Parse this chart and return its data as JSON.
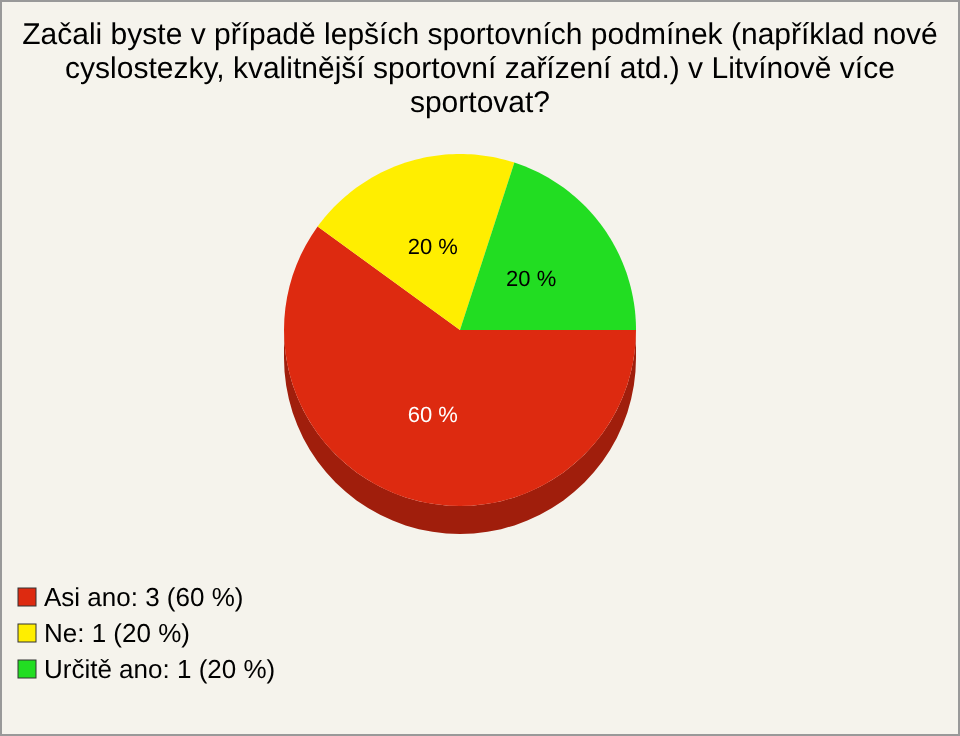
{
  "chart_data": {
    "type": "pie",
    "title": "Začali byste v případě lepších sportovních podmínek (například nové cyslostezky, kvalitnější sportovní zařízení atd.) v Litvínově více sportovat?",
    "categories": [
      "Asi ano: 3 (60 %)",
      "Ne: 1 (20 %)",
      "Určitě ano: 1 (20 %)"
    ],
    "values": [
      60,
      20,
      20
    ],
    "value_labels": [
      "60 %",
      "20 %",
      "20 %"
    ],
    "colors": [
      "#dd2a10",
      "#ffee00",
      "#22dd22"
    ],
    "legend": "bottom left"
  }
}
